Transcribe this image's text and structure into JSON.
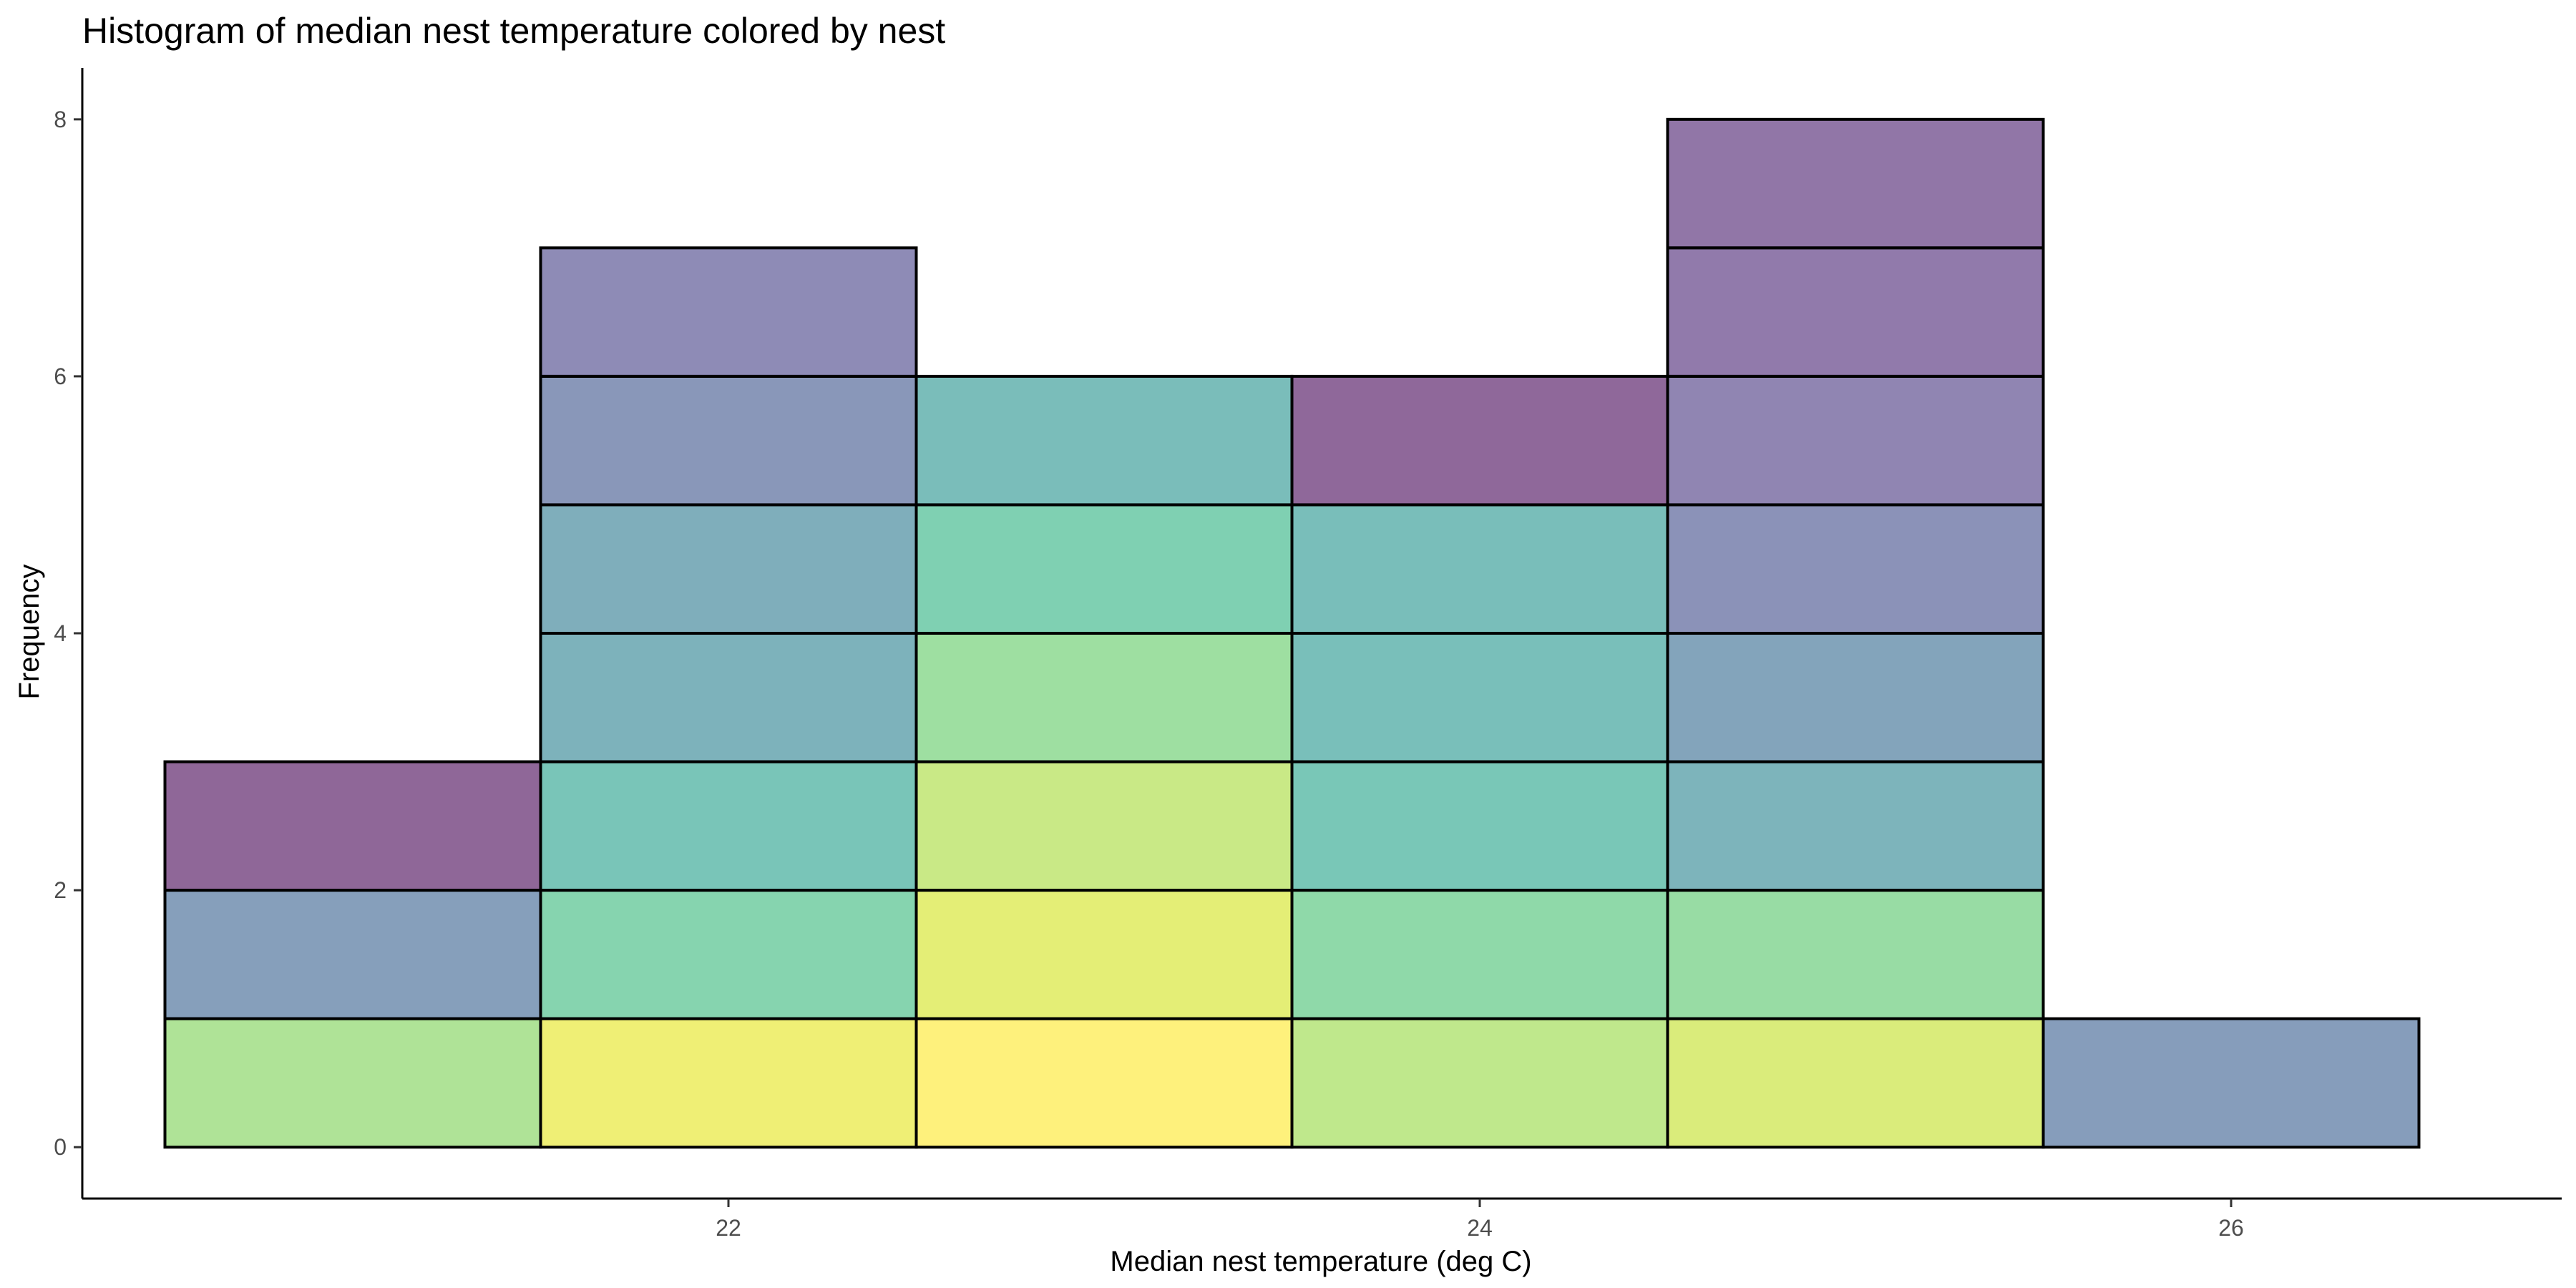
{
  "chart_data": {
    "type": "bar",
    "subtype": "stacked-histogram",
    "title": "Histogram of median nest temperature colored by nest",
    "xlabel": "Median nest temperature (deg C)",
    "ylabel": "Frequency",
    "xlim": [
      20.28,
      26.88
    ],
    "ylim": [
      -0.4,
      8.4
    ],
    "xticks": [
      22,
      24,
      26
    ],
    "yticks": [
      0,
      2,
      4,
      6,
      8
    ],
    "grid": false,
    "legend": "none",
    "bins": [
      {
        "x_start": 20.5,
        "x_end": 21.5,
        "segments": [
          {
            "count": 1,
            "color": "#7ad151"
          },
          {
            "count": 1,
            "color": "#355f8d"
          },
          {
            "count": 1,
            "color": "#440154"
          }
        ]
      },
      {
        "x_start": 21.5,
        "x_end": 22.5,
        "segments": [
          {
            "count": 1,
            "color": "#e5e419"
          },
          {
            "count": 1,
            "color": "#35b779"
          },
          {
            "count": 1,
            "color": "#1f9e89"
          },
          {
            "count": 1,
            "color": "#277f8e"
          },
          {
            "count": 1,
            "color": "#2a788e"
          },
          {
            "count": 1,
            "color": "#3b528b"
          },
          {
            "count": 1,
            "color": "#433e85"
          }
        ]
      },
      {
        "x_start": 22.5,
        "x_end": 23.5,
        "segments": [
          {
            "count": 1,
            "color": "#fde725"
          },
          {
            "count": 1,
            "color": "#d2e21b"
          },
          {
            "count": 1,
            "color": "#a5db36"
          },
          {
            "count": 1,
            "color": "#5ec962"
          },
          {
            "count": 1,
            "color": "#2ab07f"
          },
          {
            "count": 1,
            "color": "#21918c"
          }
        ]
      },
      {
        "x_start": 23.5,
        "x_end": 24.5,
        "segments": [
          {
            "count": 1,
            "color": "#95d840"
          },
          {
            "count": 1,
            "color": "#44bf70"
          },
          {
            "count": 1,
            "color": "#1fa187"
          },
          {
            "count": 1,
            "color": "#1f948c"
          },
          {
            "count": 1,
            "color": "#20928c"
          },
          {
            "count": 1,
            "color": "#450457"
          }
        ]
      },
      {
        "x_start": 24.5,
        "x_end": 25.5,
        "segments": [
          {
            "count": 1,
            "color": "#c2df23"
          },
          {
            "count": 1,
            "color": "#54c568"
          },
          {
            "count": 1,
            "color": "#26828e"
          },
          {
            "count": 1,
            "color": "#31688e"
          },
          {
            "count": 1,
            "color": "#3e4989"
          },
          {
            "count": 1,
            "color": "#46337e"
          },
          {
            "count": 1,
            "color": "#482173"
          },
          {
            "count": 1,
            "color": "#481a6c"
          }
        ]
      },
      {
        "x_start": 25.5,
        "x_end": 26.5,
        "segments": [
          {
            "count": 1,
            "color": "#365c8d"
          }
        ]
      }
    ]
  }
}
